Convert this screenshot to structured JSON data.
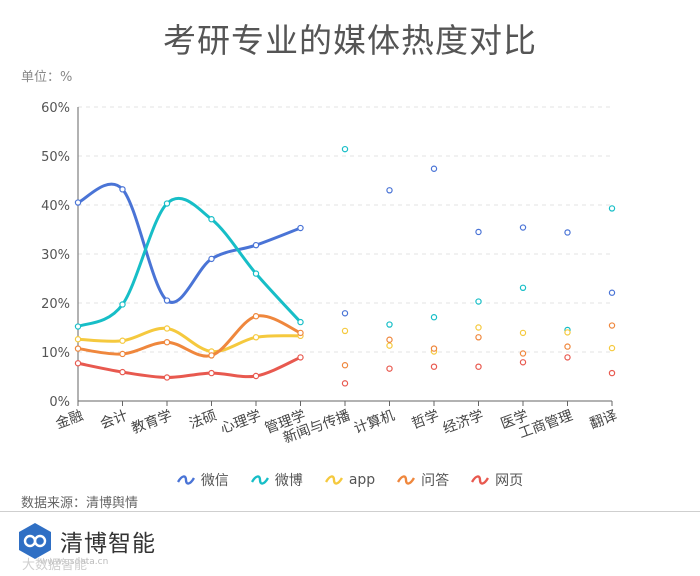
{
  "chart_data": {
    "type": "line",
    "title": "考研专业的媒体热度对比",
    "unit_label": "单位：%",
    "ylim": [
      0,
      60
    ],
    "yticks": [
      "0%",
      "10%",
      "20%",
      "30%",
      "40%",
      "50%",
      "60%"
    ],
    "categories": [
      "金融",
      "会计",
      "教育学",
      "法硕",
      "心理学",
      "管理学",
      "新闻与传播",
      "计算机",
      "哲学",
      "经济学",
      "医学",
      "工商管理",
      "翻译"
    ],
    "grid": true,
    "legend_position": "bottom",
    "series": [
      {
        "name": "微信",
        "color": "#4a74d6",
        "values": [
          40.5,
          43.2,
          20.5,
          29.0,
          31.8,
          35.3,
          17.9,
          43.0,
          47.4,
          34.5,
          35.4,
          34.4,
          22.1
        ]
      },
      {
        "name": "微博",
        "color": "#17bec7",
        "values": [
          15.2,
          19.7,
          40.3,
          37.1,
          26.0,
          16.1,
          51.4,
          15.6,
          17.1,
          20.3,
          23.1,
          14.5,
          39.3
        ]
      },
      {
        "name": "app",
        "color": "#f5c93e",
        "values": [
          12.6,
          12.3,
          14.8,
          10.1,
          13.0,
          13.3,
          14.3,
          11.3,
          10.1,
          15.0,
          13.9,
          14.0,
          10.8
        ]
      },
      {
        "name": "问答",
        "color": "#ef873d",
        "values": [
          10.7,
          9.6,
          12.0,
          9.3,
          17.3,
          13.9,
          7.3,
          12.5,
          10.7,
          13.0,
          9.7,
          11.1,
          15.4
        ]
      },
      {
        "name": "网页",
        "color": "#e8594f",
        "values": [
          7.7,
          5.9,
          4.8,
          5.7,
          5.1,
          8.9,
          3.6,
          6.6,
          7.0,
          7.0,
          7.9,
          8.9,
          5.7
        ]
      }
    ]
  },
  "source_text": "数据来源：清博舆情",
  "brand": {
    "name": "清博智能",
    "url": "www.gsdata.cn",
    "watermark": "大数据智能"
  }
}
